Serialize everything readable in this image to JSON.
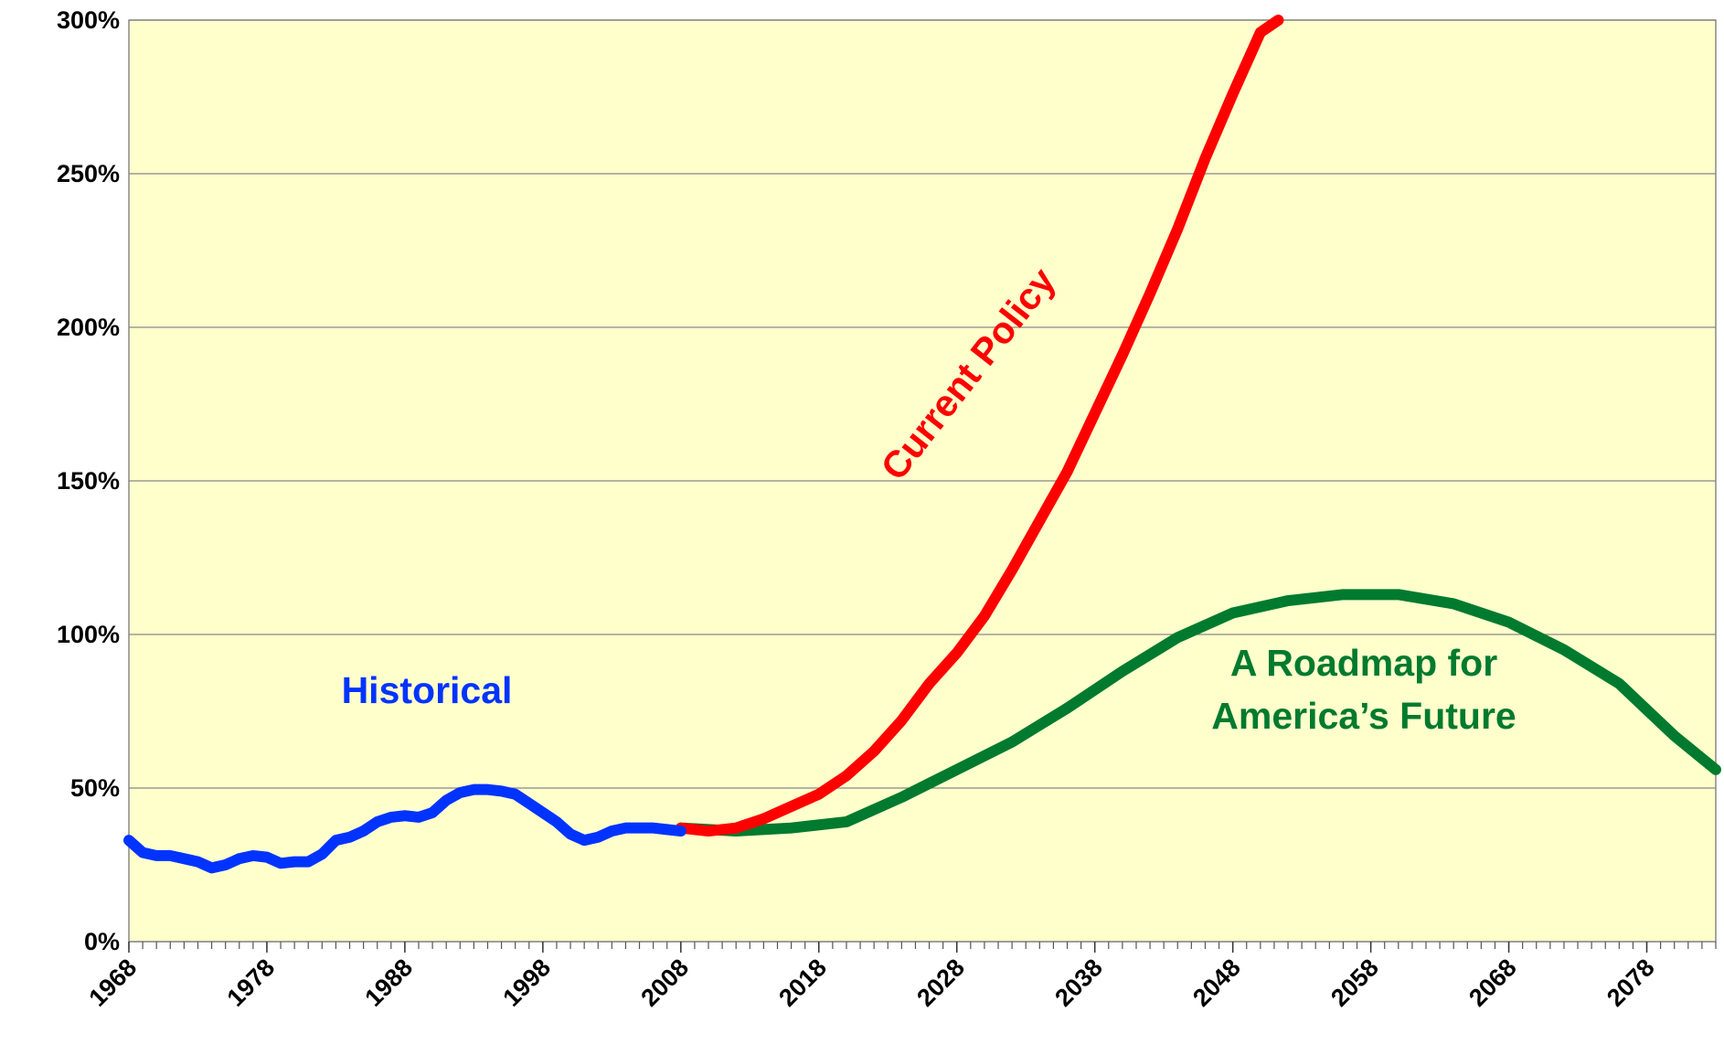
{
  "chart_data": {
    "type": "line",
    "xlim": [
      1968,
      2083
    ],
    "xticks": [
      1968,
      1978,
      1988,
      1998,
      2008,
      2018,
      2028,
      2038,
      2048,
      2058,
      2068,
      2078
    ],
    "ylim": [
      0,
      300
    ],
    "yticks": [
      {
        "value": 0,
        "label": "0%"
      },
      {
        "value": 50,
        "label": "50%"
      },
      {
        "value": 100,
        "label": "100%"
      },
      {
        "value": 150,
        "label": "150%"
      },
      {
        "value": 200,
        "label": "200%"
      },
      {
        "value": 250,
        "label": "250%"
      },
      {
        "value": 300,
        "label": "300%"
      }
    ],
    "grid": true,
    "series": [
      {
        "name": "Historical",
        "color": "#0033ff",
        "x": [
          1968,
          1969,
          1970,
          1971,
          1972,
          1973,
          1974,
          1975,
          1976,
          1977,
          1978,
          1979,
          1980,
          1981,
          1982,
          1983,
          1984,
          1985,
          1986,
          1987,
          1988,
          1989,
          1990,
          1991,
          1992,
          1993,
          1994,
          1995,
          1996,
          1997,
          1998,
          1999,
          2000,
          2001,
          2002,
          2003,
          2004,
          2005,
          2006,
          2007,
          2008
        ],
        "values": [
          33,
          29,
          28,
          28,
          27,
          26,
          24,
          25,
          27,
          28,
          27.5,
          25.5,
          26,
          26,
          28.5,
          33,
          34,
          36,
          39,
          40.5,
          41,
          40.5,
          42,
          46,
          48.5,
          49.5,
          49.5,
          49,
          48,
          45,
          42,
          39,
          35,
          33,
          34,
          36,
          37,
          37,
          37,
          36.5,
          36
        ]
      },
      {
        "name": "Current Policy",
        "color": "#ff0000",
        "x": [
          2008,
          2010,
          2012,
          2014,
          2016,
          2018,
          2020,
          2022,
          2024,
          2026,
          2028,
          2030,
          2032,
          2034,
          2036,
          2038,
          2040,
          2042,
          2044,
          2046,
          2048,
          2050,
          2051.3
        ],
        "values": [
          37,
          36,
          37,
          40,
          44,
          48,
          54,
          62,
          72,
          84,
          94,
          106,
          121,
          137,
          153,
          172,
          191,
          211,
          232,
          255,
          276,
          296,
          300
        ]
      },
      {
        "name": "A Roadmap for America’s Future",
        "color": "#007a2e",
        "x": [
          2008,
          2012,
          2016,
          2020,
          2024,
          2028,
          2032,
          2036,
          2040,
          2044,
          2048,
          2052,
          2056,
          2060,
          2064,
          2068,
          2072,
          2076,
          2080,
          2083
        ],
        "values": [
          37,
          36,
          37,
          39,
          47,
          56,
          65,
          76,
          88,
          99,
          107,
          111,
          113,
          113,
          110,
          104,
          95,
          84,
          67,
          56
        ]
      }
    ]
  }
}
